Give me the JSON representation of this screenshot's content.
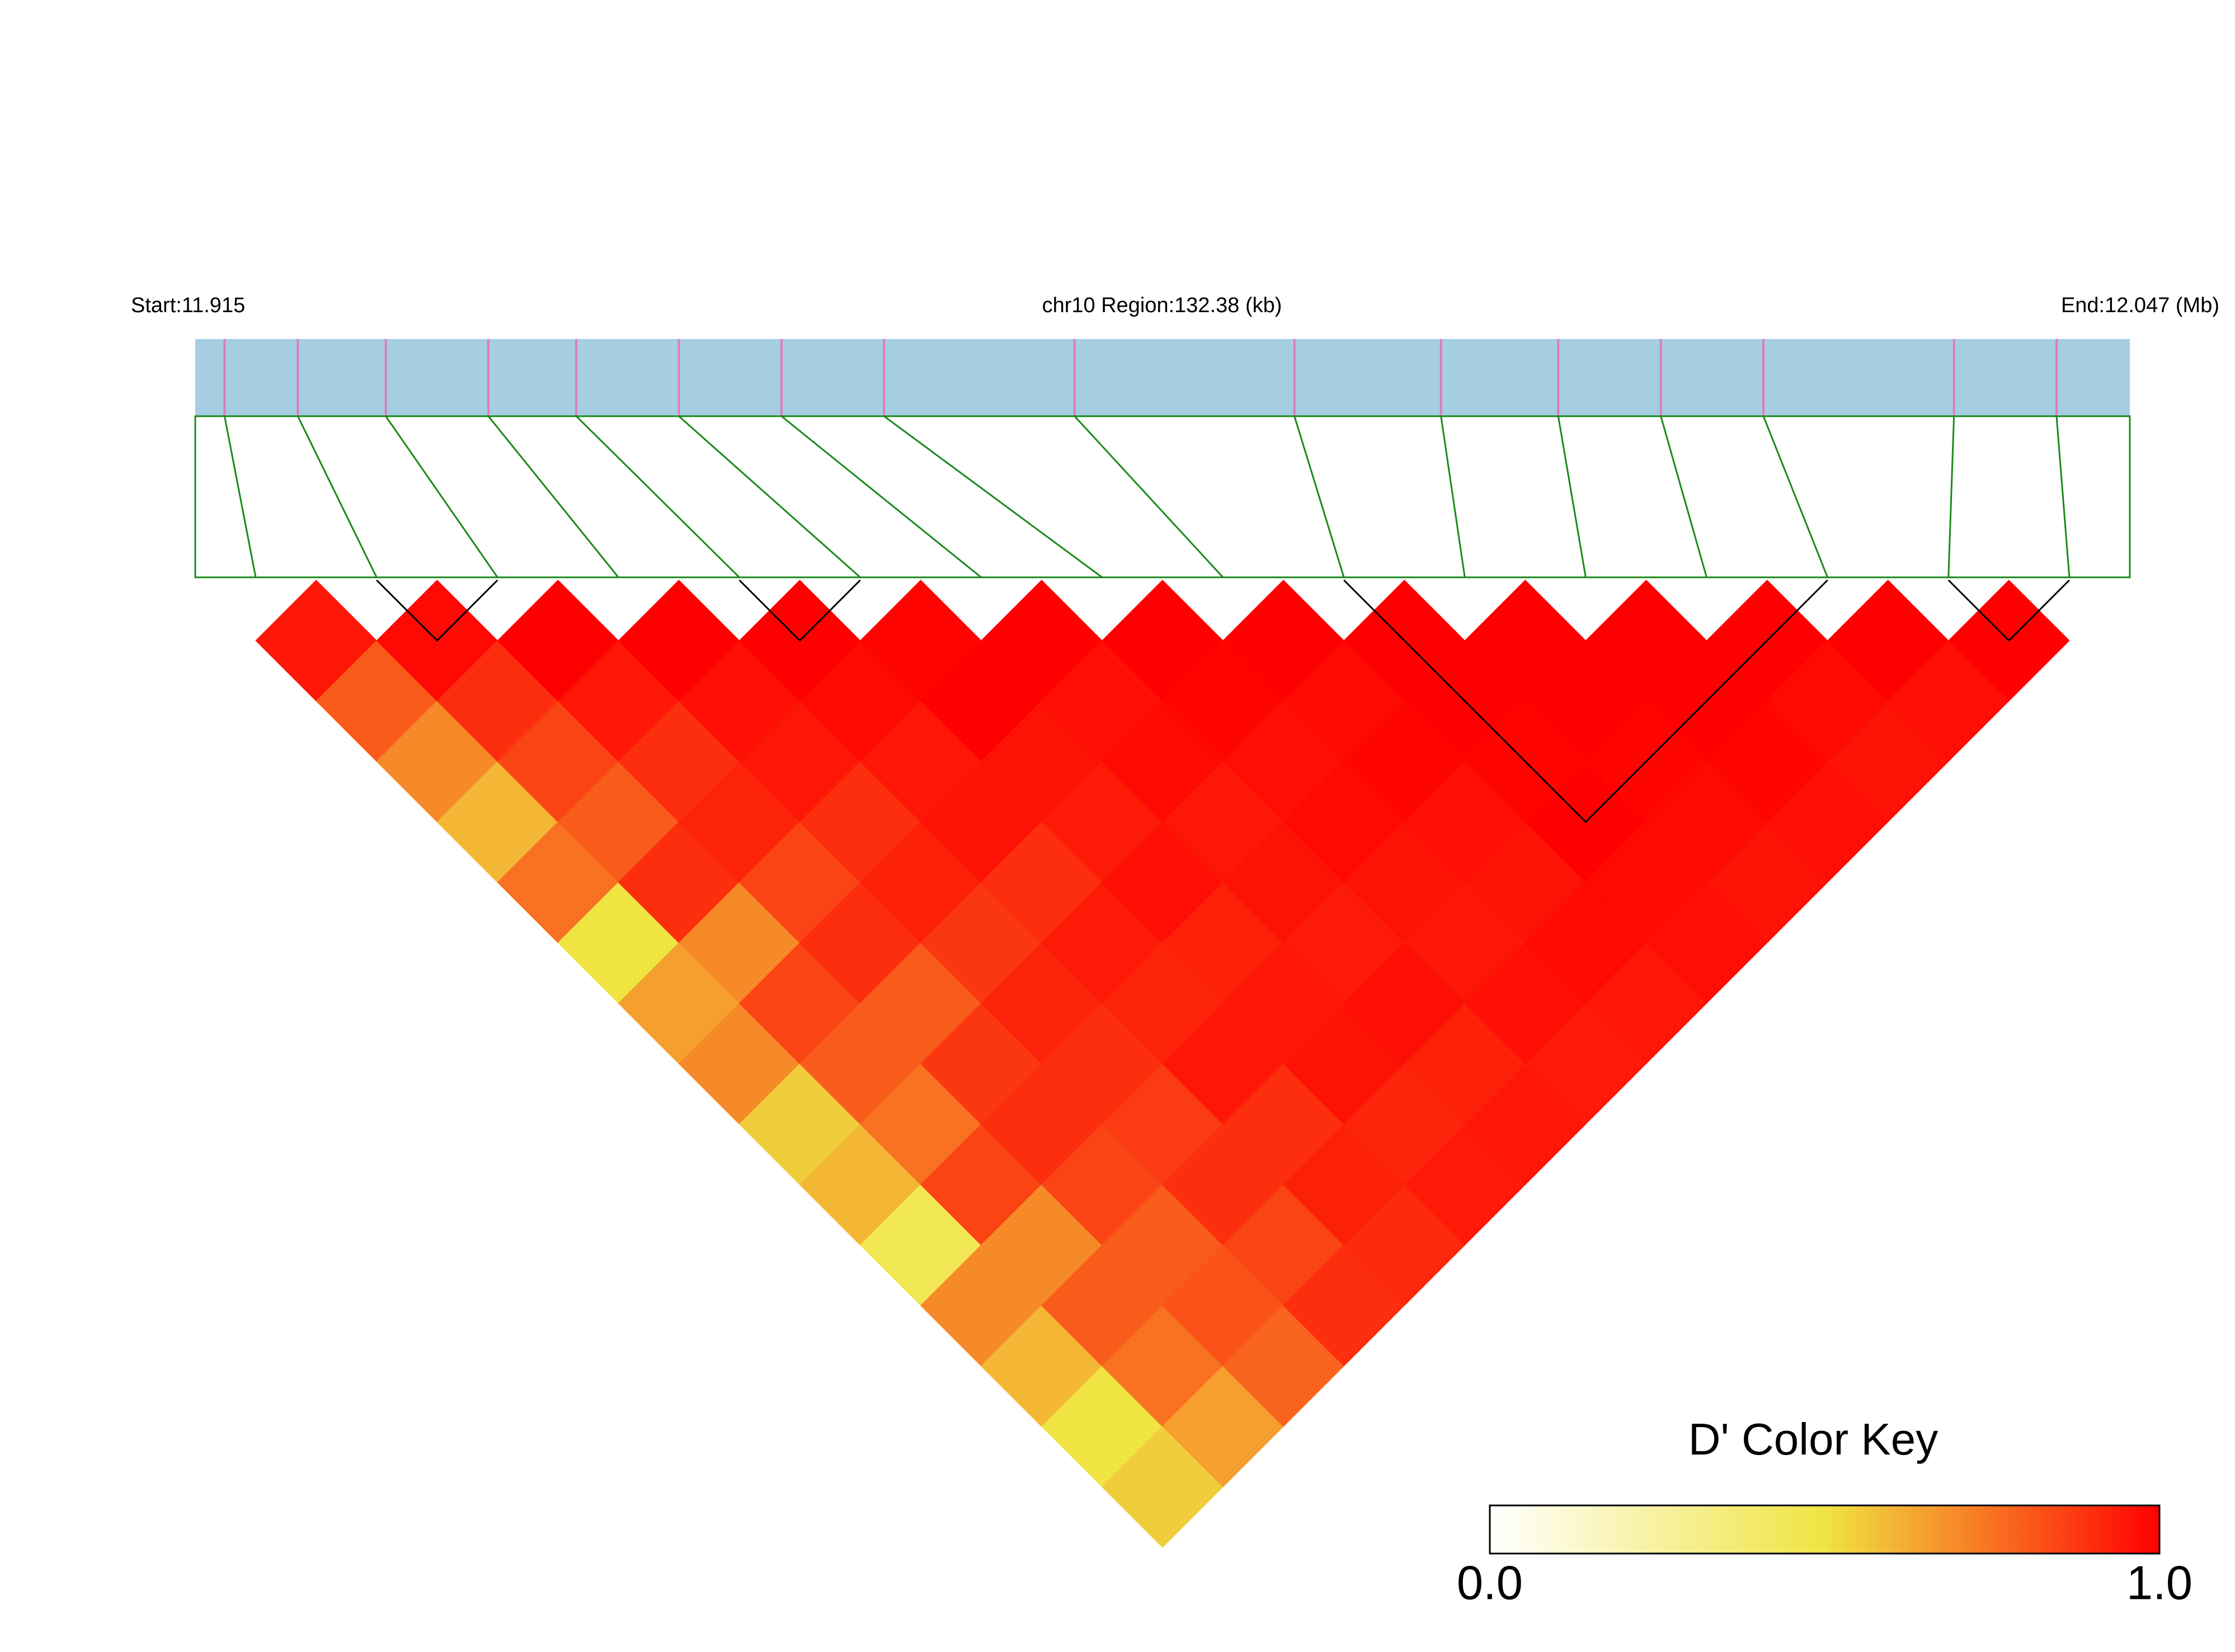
{
  "chart_data": {
    "type": "ld-heatmap",
    "start_label": "Start:11.915",
    "region_label": "chr10 Region:132.38 (kb)",
    "end_label": "End:12.047 (Mb)",
    "xlim": [
      11.915,
      12.047
    ],
    "snp_positions": [
      11.917,
      11.922,
      11.928,
      11.935,
      11.941,
      11.948,
      11.955,
      11.962,
      11.975,
      11.99,
      12.0,
      12.008,
      12.015,
      12.022,
      12.035,
      12.042
    ],
    "dprime": [
      [
        0.95,
        0.8,
        0.7,
        0.6,
        0.75,
        0.5,
        0.65,
        0.7,
        0.55,
        0.6,
        0.45,
        0.7,
        0.6,
        0.5,
        0.55
      ],
      [
        0.98,
        0.9,
        0.85,
        0.8,
        0.9,
        0.7,
        0.85,
        0.8,
        0.75,
        0.85,
        0.7,
        0.8,
        0.75,
        0.65
      ],
      [
        1,
        0.95,
        0.9,
        0.92,
        0.85,
        0.9,
        0.8,
        0.88,
        0.9,
        0.85,
        0.8,
        0.82,
        0.78
      ],
      [
        1,
        0.97,
        0.95,
        0.9,
        0.93,
        0.88,
        0.92,
        0.9,
        0.87,
        0.9,
        0.85,
        0.9
      ],
      [
        1,
        0.98,
        0.95,
        0.96,
        0.9,
        0.94,
        0.92,
        0.95,
        0.9,
        0.93,
        0.91
      ],
      [
        0.99,
        1,
        0.96,
        0.94,
        0.97,
        0.93,
        0.95,
        0.96,
        0.92,
        0.94
      ],
      [
        1,
        0.97,
        0.98,
        0.95,
        0.96,
        0.94,
        0.97,
        0.93,
        0.95
      ],
      [
        1,
        0.99,
        0.97,
        0.98,
        0.96,
        0.95,
        0.97,
        0.94
      ],
      [
        1,
        0.98,
        0.99,
        0.97,
        0.96,
        0.98,
        0.95
      ],
      [
        1,
        1,
        0.99,
        1,
        0.98,
        0.97
      ],
      [
        1,
        1,
        0.99,
        0.98,
        0.96
      ],
      [
        1,
        1,
        0.99,
        0.97
      ],
      [
        1,
        0.98,
        0.96
      ],
      [
        1,
        0.97
      ],
      [
        1
      ]
    ],
    "blocks": [
      [
        1,
        2
      ],
      [
        4,
        5
      ],
      [
        9,
        13
      ],
      [
        14,
        15
      ]
    ],
    "bar_color": "#a6cee3",
    "snp_tick_color": "#e07bbf",
    "link_color": "#1a8a1a",
    "key_title": "D' Color Key",
    "key_colors": [
      "#ffffff",
      "#f0e442",
      "#ff0000"
    ],
    "key_lim": [
      0,
      1
    ],
    "key_ticks": [
      {
        "value": 0,
        "label": "0.0"
      },
      {
        "value": 1,
        "label": "1.0"
      }
    ]
  }
}
